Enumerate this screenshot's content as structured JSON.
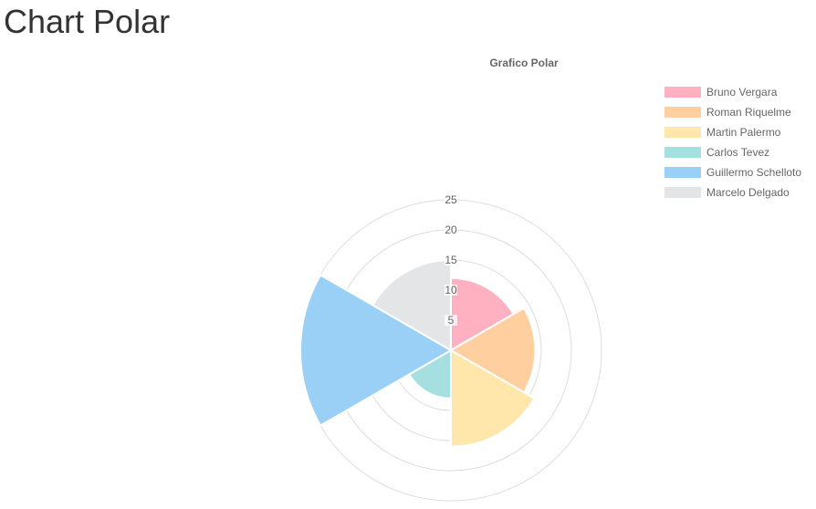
{
  "page": {
    "title": "Chart Polar"
  },
  "chart_data": {
    "type": "polarArea",
    "title": "Grafico Polar",
    "labels": [
      "Bruno Vergara",
      "Roman Riquelme",
      "Martin Palermo",
      "Carlos Tevez",
      "Guillermo Schelloto",
      "Marcelo Delgado"
    ],
    "values": [
      12,
      14,
      16,
      8,
      25,
      15
    ],
    "colors": [
      "#ffb1c1",
      "#ffcf9f",
      "#ffe6aa",
      "#a5dfdf",
      "#9ad0f5",
      "#e4e5e7"
    ],
    "r_ticks": [
      5,
      10,
      15,
      20,
      25
    ],
    "r_range": [
      0,
      25
    ],
    "legend_position": "right",
    "grid": true
  }
}
